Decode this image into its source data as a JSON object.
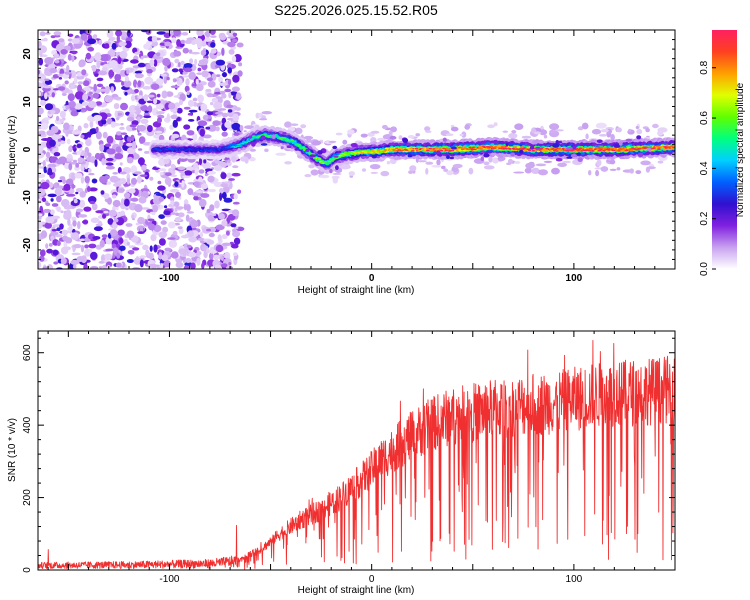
{
  "title": "S225.2026.025.15.52.R05",
  "chart_data": [
    {
      "type": "heatmap",
      "name": "spectrogram",
      "xlabel": "Height of straight line (km)",
      "ylabel": "Frequency (Hz)",
      "xlim": [
        -165,
        150
      ],
      "ylim": [
        -25,
        25
      ],
      "xticks": [
        -100,
        0,
        100
      ],
      "xtick_labels": [
        "-100",
        "0",
        "100"
      ],
      "yticks": [
        -20,
        -10,
        0,
        10,
        20
      ],
      "ytick_labels": [
        "-20",
        "-10",
        "0",
        "10",
        "20"
      ],
      "colorbar": {
        "label": "Normalized spectral amplitude",
        "range": [
          0,
          0.95
        ],
        "ticks": [
          0.0,
          0.2,
          0.4,
          0.6,
          0.8
        ],
        "tick_labels": [
          "0.0",
          "0.2",
          "0.4",
          "0.6",
          "0.8"
        ],
        "colormap": [
          "#ffffff",
          "#c8a0f0",
          "#8020e0",
          "#3010d0",
          "#0060ff",
          "#00d0ff",
          "#00ff80",
          "#60ff00",
          "#e0ff00",
          "#ffa000",
          "#ff4020",
          "#ff2060"
        ]
      },
      "ridge": {
        "x": [
          -108,
          -90,
          -75,
          -65,
          -58,
          -52,
          -45,
          -38,
          -30,
          -25,
          -22,
          -18,
          -12,
          -5,
          0,
          10,
          20,
          40,
          60,
          80,
          100,
          120,
          150
        ],
        "y": [
          0,
          0,
          0,
          1,
          2.5,
          3,
          2.5,
          1.5,
          -1,
          -2.5,
          -3,
          -1.5,
          -1,
          -0.5,
          -0.5,
          0,
          0,
          0,
          0.5,
          0,
          0,
          0,
          0.5
        ],
        "amp": [
          0.3,
          0.3,
          0.3,
          0.45,
          0.5,
          0.55,
          0.55,
          0.55,
          0.6,
          0.65,
          0.55,
          0.6,
          0.65,
          0.7,
          0.7,
          0.8,
          0.85,
          0.9,
          0.9,
          0.9,
          0.92,
          0.92,
          0.9
        ]
      },
      "noise_region_x": [
        -165,
        -65
      ]
    },
    {
      "type": "line",
      "name": "snr",
      "xlabel": "Height of straight line (km)",
      "ylabel": "SNR (10 * v/v)",
      "xlim": [
        -165,
        150
      ],
      "ylim": [
        0,
        660
      ],
      "xticks": [
        -100,
        0,
        100
      ],
      "xtick_labels": [
        "-100",
        "0",
        "100"
      ],
      "yticks": [
        0,
        200,
        400,
        600
      ],
      "ytick_labels": [
        "0",
        "200",
        "400",
        "600"
      ],
      "series": [
        {
          "name": "SNR",
          "color": "#f03030",
          "envelope_x": [
            -165,
            -120,
            -80,
            -65,
            -55,
            -45,
            -35,
            -25,
            -15,
            -5,
            5,
            15,
            25,
            35,
            50,
            70,
            90,
            110,
            130,
            150
          ],
          "envelope_y": [
            18,
            20,
            25,
            35,
            60,
            110,
            150,
            180,
            220,
            270,
            330,
            380,
            420,
            450,
            470,
            490,
            500,
            520,
            530,
            540
          ]
        }
      ]
    }
  ]
}
